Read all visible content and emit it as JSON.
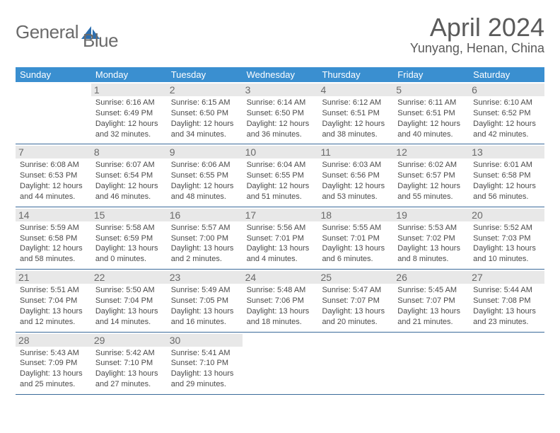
{
  "brand": {
    "text1": "General",
    "text2": "Blue"
  },
  "title": "April 2024",
  "location": "Yunyang, Henan, China",
  "colors": {
    "header_bg": "#3a8fd0",
    "header_text": "#ffffff",
    "daynum_bg": "#e8e8e8",
    "border": "#3a6a9a",
    "text": "#4a4a4a",
    "title": "#5a5a5a",
    "logo_text": "#6b6b6b",
    "logo_shape": "#2d6fb0"
  },
  "day_names": [
    "Sunday",
    "Monday",
    "Tuesday",
    "Wednesday",
    "Thursday",
    "Friday",
    "Saturday"
  ],
  "weeks": [
    [
      null,
      {
        "n": "1",
        "sr": "6:16 AM",
        "ss": "6:49 PM",
        "dh": "12",
        "dm": "32"
      },
      {
        "n": "2",
        "sr": "6:15 AM",
        "ss": "6:50 PM",
        "dh": "12",
        "dm": "34"
      },
      {
        "n": "3",
        "sr": "6:14 AM",
        "ss": "6:50 PM",
        "dh": "12",
        "dm": "36"
      },
      {
        "n": "4",
        "sr": "6:12 AM",
        "ss": "6:51 PM",
        "dh": "12",
        "dm": "38"
      },
      {
        "n": "5",
        "sr": "6:11 AM",
        "ss": "6:51 PM",
        "dh": "12",
        "dm": "40"
      },
      {
        "n": "6",
        "sr": "6:10 AM",
        "ss": "6:52 PM",
        "dh": "12",
        "dm": "42"
      }
    ],
    [
      {
        "n": "7",
        "sr": "6:08 AM",
        "ss": "6:53 PM",
        "dh": "12",
        "dm": "44"
      },
      {
        "n": "8",
        "sr": "6:07 AM",
        "ss": "6:54 PM",
        "dh": "12",
        "dm": "46"
      },
      {
        "n": "9",
        "sr": "6:06 AM",
        "ss": "6:55 PM",
        "dh": "12",
        "dm": "48"
      },
      {
        "n": "10",
        "sr": "6:04 AM",
        "ss": "6:55 PM",
        "dh": "12",
        "dm": "51"
      },
      {
        "n": "11",
        "sr": "6:03 AM",
        "ss": "6:56 PM",
        "dh": "12",
        "dm": "53"
      },
      {
        "n": "12",
        "sr": "6:02 AM",
        "ss": "6:57 PM",
        "dh": "12",
        "dm": "55"
      },
      {
        "n": "13",
        "sr": "6:01 AM",
        "ss": "6:58 PM",
        "dh": "12",
        "dm": "56"
      }
    ],
    [
      {
        "n": "14",
        "sr": "5:59 AM",
        "ss": "6:58 PM",
        "dh": "12",
        "dm": "58"
      },
      {
        "n": "15",
        "sr": "5:58 AM",
        "ss": "6:59 PM",
        "dh": "13",
        "dm": "0"
      },
      {
        "n": "16",
        "sr": "5:57 AM",
        "ss": "7:00 PM",
        "dh": "13",
        "dm": "2"
      },
      {
        "n": "17",
        "sr": "5:56 AM",
        "ss": "7:01 PM",
        "dh": "13",
        "dm": "4"
      },
      {
        "n": "18",
        "sr": "5:55 AM",
        "ss": "7:01 PM",
        "dh": "13",
        "dm": "6"
      },
      {
        "n": "19",
        "sr": "5:53 AM",
        "ss": "7:02 PM",
        "dh": "13",
        "dm": "8"
      },
      {
        "n": "20",
        "sr": "5:52 AM",
        "ss": "7:03 PM",
        "dh": "13",
        "dm": "10"
      }
    ],
    [
      {
        "n": "21",
        "sr": "5:51 AM",
        "ss": "7:04 PM",
        "dh": "13",
        "dm": "12"
      },
      {
        "n": "22",
        "sr": "5:50 AM",
        "ss": "7:04 PM",
        "dh": "13",
        "dm": "14"
      },
      {
        "n": "23",
        "sr": "5:49 AM",
        "ss": "7:05 PM",
        "dh": "13",
        "dm": "16"
      },
      {
        "n": "24",
        "sr": "5:48 AM",
        "ss": "7:06 PM",
        "dh": "13",
        "dm": "18"
      },
      {
        "n": "25",
        "sr": "5:47 AM",
        "ss": "7:07 PM",
        "dh": "13",
        "dm": "20"
      },
      {
        "n": "26",
        "sr": "5:45 AM",
        "ss": "7:07 PM",
        "dh": "13",
        "dm": "21"
      },
      {
        "n": "27",
        "sr": "5:44 AM",
        "ss": "7:08 PM",
        "dh": "13",
        "dm": "23"
      }
    ],
    [
      {
        "n": "28",
        "sr": "5:43 AM",
        "ss": "7:09 PM",
        "dh": "13",
        "dm": "25"
      },
      {
        "n": "29",
        "sr": "5:42 AM",
        "ss": "7:10 PM",
        "dh": "13",
        "dm": "27"
      },
      {
        "n": "30",
        "sr": "5:41 AM",
        "ss": "7:10 PM",
        "dh": "13",
        "dm": "29"
      },
      null,
      null,
      null,
      null
    ]
  ],
  "labels": {
    "sunrise": "Sunrise:",
    "sunset": "Sunset:",
    "daylight": "Daylight:",
    "hours": "hours",
    "and": "and",
    "minutes": "minutes."
  }
}
